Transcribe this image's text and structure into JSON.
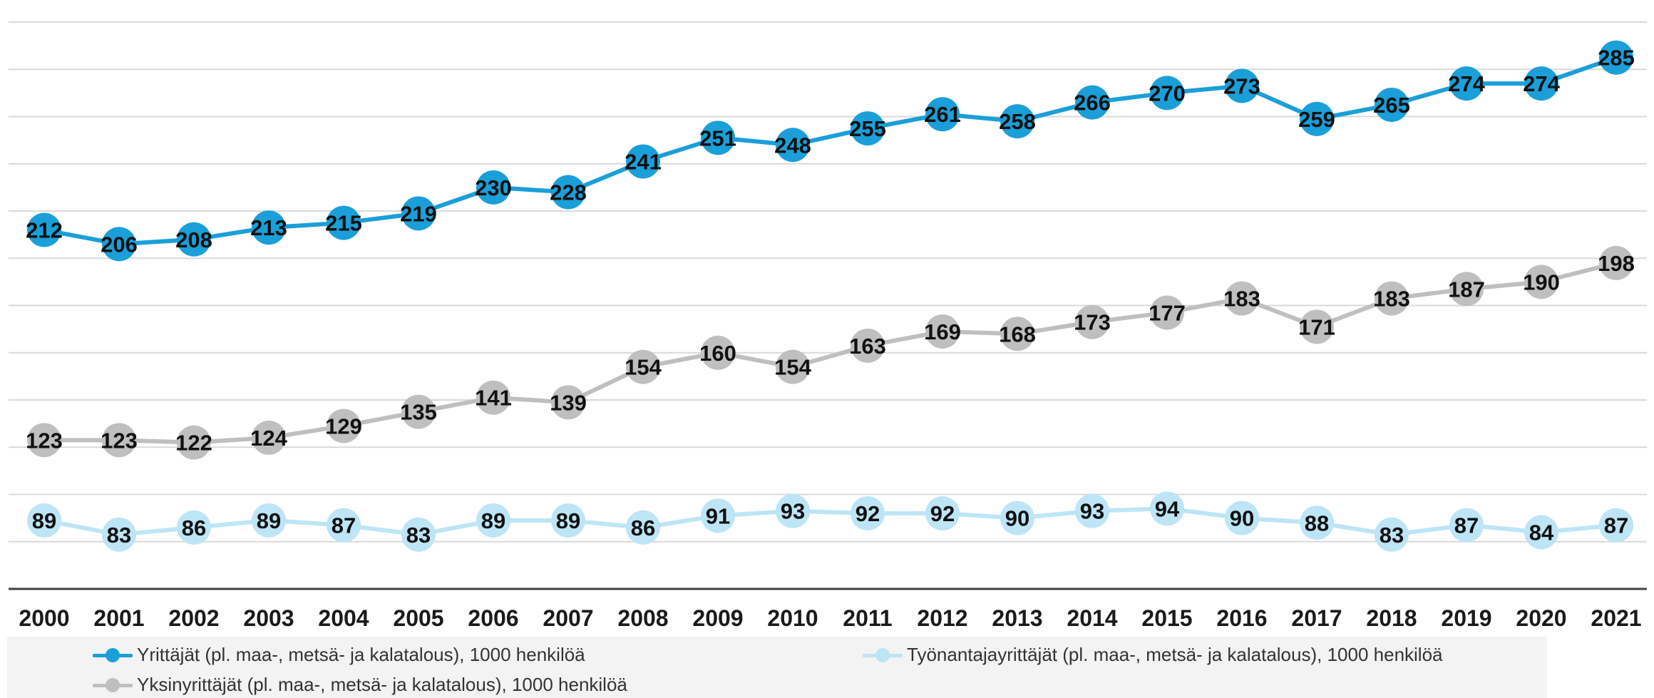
{
  "chart_data": {
    "type": "line",
    "title": "",
    "xlabel": "",
    "ylabel": "",
    "ylim": [
      60,
      300
    ],
    "grid": true,
    "legend_position": "bottom",
    "categories": [
      "2000",
      "2001",
      "2002",
      "2003",
      "2004",
      "2005",
      "2006",
      "2007",
      "2008",
      "2009",
      "2010",
      "2011",
      "2012",
      "2013",
      "2014",
      "2015",
      "2016",
      "2017",
      "2018",
      "2019",
      "2020",
      "2021"
    ],
    "series": [
      {
        "name": "Yrittäjät (pl. maa-, metsä- ja kalatalous), 1000 henkilöä",
        "color": "#1a9fd9",
        "values": [
          212,
          206,
          208,
          213,
          215,
          219,
          230,
          228,
          241,
          251,
          248,
          255,
          261,
          258,
          266,
          270,
          273,
          259,
          265,
          274,
          274,
          285
        ]
      },
      {
        "name": "Yksinyrittäjät (pl. maa-, metsä- ja kalatalous), 1000 henkilöä",
        "color": "#bfbfbf",
        "values": [
          123,
          123,
          122,
          124,
          129,
          135,
          141,
          139,
          154,
          160,
          154,
          163,
          169,
          168,
          173,
          177,
          183,
          171,
          183,
          187,
          190,
          198
        ]
      },
      {
        "name": "Työnantajayrittäjät (pl. maa-, metsä- ja kalatalous), 1000 henkilöä",
        "color": "#bde5f6",
        "values": [
          89,
          83,
          86,
          89,
          87,
          83,
          89,
          89,
          86,
          91,
          93,
          92,
          92,
          90,
          93,
          94,
          90,
          88,
          83,
          87,
          84,
          87
        ]
      }
    ]
  }
}
